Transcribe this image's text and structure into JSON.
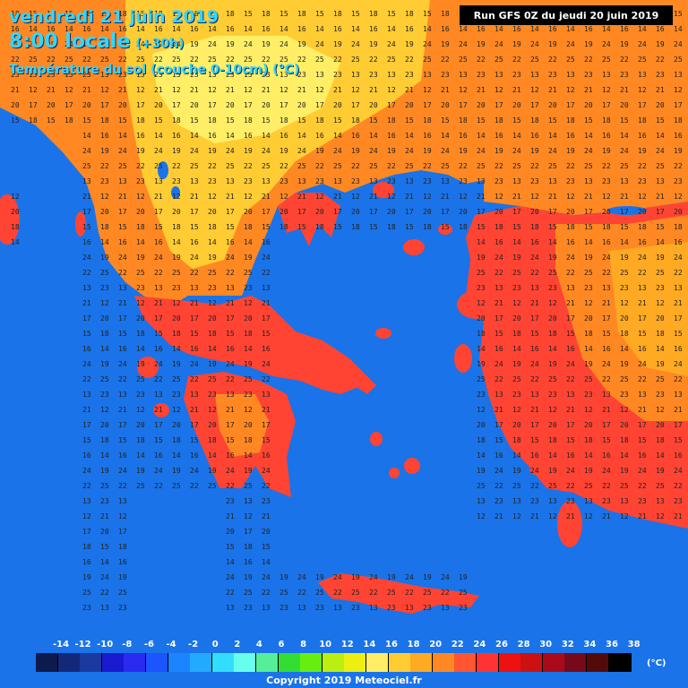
{
  "header": {
    "date_line": "vendredi 21 juin 2019",
    "time_line": "8:00 locale",
    "lead_time": "(+30h)",
    "parameter": "Température du sol (couche 0-10cm) (°C)",
    "run_info": "Run GFS 0Z du jeudi 20 juin 2019"
  },
  "legend": {
    "ticks": [
      "-14",
      "-12",
      "-10",
      "-8",
      "-6",
      "-4",
      "-2",
      "0",
      "2",
      "4",
      "6",
      "8",
      "10",
      "12",
      "14",
      "16",
      "18",
      "20",
      "22",
      "24",
      "26",
      "28",
      "30",
      "32",
      "34",
      "36",
      "38"
    ],
    "colors": [
      "#0d1a4d",
      "#14287a",
      "#1a3aa0",
      "#1a1ad0",
      "#2a2af0",
      "#1a55ff",
      "#1a85ff",
      "#22aaff",
      "#33ddff",
      "#66ffee",
      "#55ee99",
      "#33dd33",
      "#66ee11",
      "#bbee11",
      "#eeee11",
      "#ffee66",
      "#ffcc33",
      "#ffaa22",
      "#ff8822",
      "#ff5533",
      "#ff3333",
      "#ee1111",
      "#cc1111",
      "#aa0a1a",
      "#770a1a",
      "#550a0a",
      "#000000"
    ],
    "unit": "(°C)"
  },
  "footer": {
    "copyright": "Copyright 2019 Meteociel.fr"
  },
  "colors": {
    "sea": "#1a73e8",
    "land_hot": "#ff4433",
    "land_warm": "#ff8822",
    "land_mild": "#ffcc33",
    "land_cool": "#ffee66"
  },
  "map_values": [
    {
      "v": "17",
      "c": "#ffcc33"
    },
    {
      "v": "18",
      "c": "#ffcc33"
    },
    {
      "v": "16",
      "c": "#ffee66"
    },
    {
      "v": "19",
      "c": "#ffaa22"
    },
    {
      "v": "22",
      "c": "#ff8822"
    },
    {
      "v": "23",
      "c": "#ff5533"
    },
    {
      "v": "21",
      "c": "#ffaa22"
    },
    {
      "v": "20",
      "c": "#ffaa22"
    },
    {
      "v": "15",
      "c": "#ffee66"
    },
    {
      "v": "14",
      "c": "#ffee66"
    },
    {
      "v": "24",
      "c": "#ff4433"
    },
    {
      "v": "25",
      "c": "#ff3333"
    },
    {
      "v": "13",
      "c": "#ffee99"
    },
    {
      "v": "12",
      "c": "#ffee99"
    }
  ]
}
